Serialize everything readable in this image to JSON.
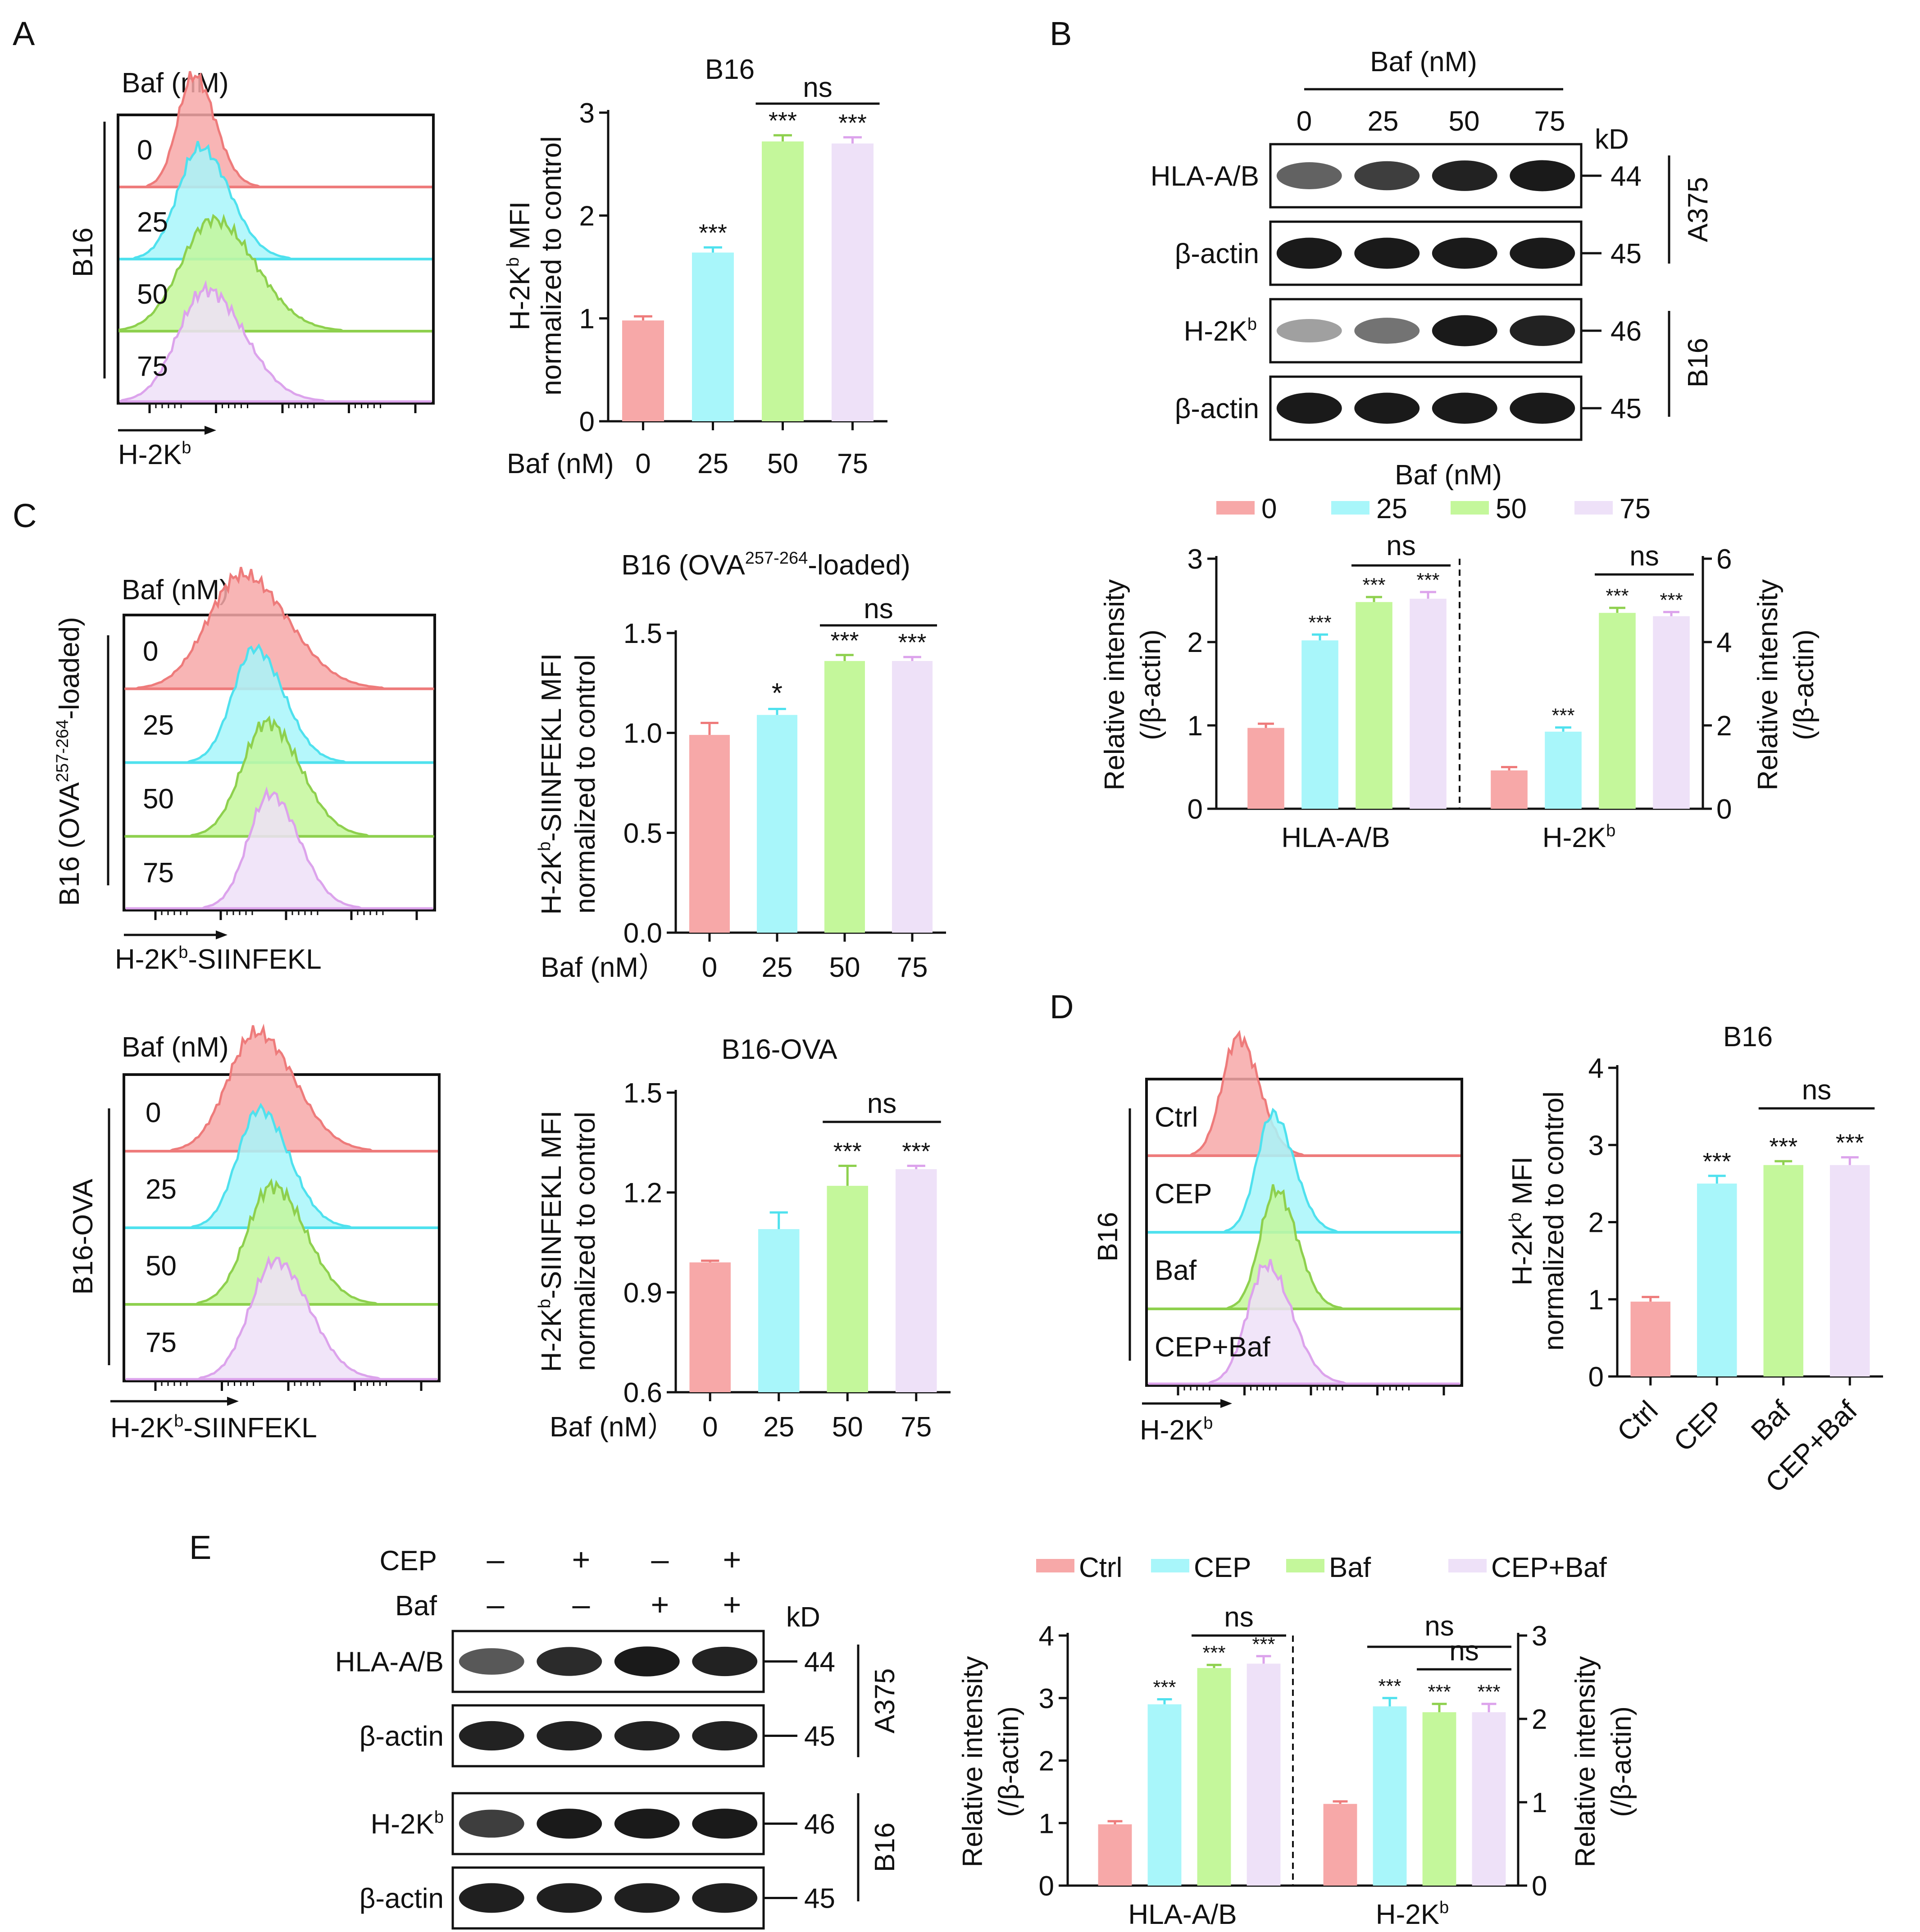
{
  "colors": {
    "c0": "#F7A8A8",
    "c1": "#A8F6FA",
    "c2": "#C4F79B",
    "c3": "#EEE1F8",
    "l0": "#EE7B7B",
    "l1": "#4FE1EE",
    "l2": "#8ED04E",
    "l3": "#DCA3EC",
    "axis": "#111111"
  },
  "panel_labels": {
    "A": "A",
    "B": "B",
    "C": "C",
    "D": "D",
    "E": "E"
  },
  "common": {
    "baf_nM": "Baf (nM)",
    "baf_nM_paren": "Baf (nM）",
    "kD": "kD",
    "ns": "ns",
    "triple": "***",
    "single": "*"
  },
  "panelA": {
    "hist": {
      "title": "Baf (nM)",
      "side": "B16",
      "xlabel": "H-2K",
      "xsup": "b",
      "rows": [
        "0",
        "25",
        "50",
        "75"
      ]
    },
    "chart": {
      "type": "bar",
      "title": "B16",
      "ylabel1_a": "H-2K",
      "ylabel1_sup": "b",
      "ylabel1_b": " MFI",
      "ylabel2": "normalized to control",
      "xprefix": "Baf (nM)",
      "categories": [
        "0",
        "25",
        "50",
        "75"
      ],
      "values": [
        0.98,
        1.64,
        2.72,
        2.7
      ],
      "errors": [
        0.04,
        0.05,
        0.06,
        0.06
      ],
      "ylim": [
        0,
        3
      ],
      "yticks": [
        "0",
        "1",
        "2",
        "3"
      ],
      "sig": [
        "",
        "***",
        "***",
        "***"
      ],
      "bracket": [
        2,
        3
      ]
    }
  },
  "panelB": {
    "blot": {
      "header": "Baf (nM)",
      "lanes": [
        "0",
        "25",
        "50",
        "75"
      ],
      "kd": "kD",
      "rows": [
        {
          "label": "HLA-A/B",
          "kd": "44"
        },
        {
          "label": "β-actin",
          "kd": "45"
        },
        {
          "label": "H-2K",
          "sup": "b",
          "kd": "46"
        },
        {
          "label": "β-actin",
          "kd": "45"
        }
      ],
      "groups": [
        "A375",
        "B16"
      ]
    },
    "chart": {
      "type": "bar",
      "legend_title": "Baf (nM)",
      "legend": [
        "0",
        "25",
        "50",
        "75"
      ],
      "groups": [
        "HLA-A/B",
        "H-2K"
      ],
      "group_sup": "b",
      "ylabel1": "Relative intensity",
      "ylabel2": "(/β-actin)",
      "left": {
        "ylim": [
          0,
          3
        ],
        "yticks": [
          "0",
          "1",
          "2",
          "3"
        ],
        "values": [
          0.97,
          2.02,
          2.48,
          2.52
        ],
        "errors": [
          0.05,
          0.07,
          0.06,
          0.08
        ],
        "sig": [
          "",
          "***",
          "***",
          "***"
        ]
      },
      "right": {
        "ylim": [
          0,
          6
        ],
        "yticks": [
          "0",
          "2",
          "4",
          "6"
        ],
        "values": [
          0.92,
          1.85,
          4.7,
          4.62
        ],
        "errors": [
          0.08,
          0.1,
          0.12,
          0.1
        ],
        "sig": [
          "",
          "***",
          "***",
          "***"
        ]
      }
    }
  },
  "panelC1": {
    "hist": {
      "title": "Baf (nM)",
      "side_a": "B16 (OVA",
      "side_sup": "257-264",
      "side_b": "-loaded)",
      "xlabel_a": "H-2K",
      "xsup": "b",
      "xlabel_b": "-SIINFEKL",
      "rows": [
        "0",
        "25",
        "50",
        "75"
      ]
    },
    "chart": {
      "type": "bar",
      "title_a": "B16 (OVA",
      "title_sup": "257-264",
      "title_b": "-loaded)",
      "ylabel1_a": "H-2K",
      "ylabel1_sup": "b",
      "ylabel1_b": "-SIINFEKL MFI",
      "ylabel2": "normalized to control",
      "categories": [
        "0",
        "25",
        "50",
        "75"
      ],
      "values": [
        0.99,
        1.09,
        1.36,
        1.36
      ],
      "errors": [
        0.06,
        0.03,
        0.03,
        0.02
      ],
      "ylim": [
        0,
        1.5
      ],
      "yticks": [
        "0.0",
        "0.5",
        "1.0",
        "1.5"
      ],
      "sig": [
        "",
        "*",
        "***",
        "***"
      ],
      "bracket": [
        2,
        3
      ]
    }
  },
  "panelC2": {
    "hist": {
      "title": "Baf (nM)",
      "side": "B16-OVA",
      "xlabel_a": "H-2K",
      "xsup": "b",
      "xlabel_b": "-SIINFEKL",
      "rows": [
        "0",
        "25",
        "50",
        "75"
      ]
    },
    "chart": {
      "type": "bar",
      "title": "B16-OVA",
      "ylabel1_a": "H-2K",
      "ylabel1_sup": "b",
      "ylabel1_b": "-SIINFEKL MFI",
      "ylabel2": "normalized to control",
      "categories": [
        "0",
        "25",
        "50",
        "75"
      ],
      "values": [
        0.99,
        1.09,
        1.22,
        1.27
      ],
      "errors": [
        0.005,
        0.05,
        0.06,
        0.01
      ],
      "ylim": [
        0.6,
        1.5
      ],
      "yticks": [
        "0.6",
        "0.9",
        "1.2",
        "1.5"
      ],
      "sig": [
        "",
        "",
        "***",
        "***"
      ],
      "bracket": [
        2,
        3
      ]
    }
  },
  "panelD": {
    "hist": {
      "side": "B16",
      "xlabel": "H-2K",
      "xsup": "b",
      "rows": [
        "Ctrl",
        "CEP",
        "Baf",
        "CEP+Baf"
      ]
    },
    "chart": {
      "type": "bar",
      "title": "B16",
      "ylabel1_a": "H-2K",
      "ylabel1_sup": "b",
      "ylabel1_b": " MFI",
      "ylabel2": "normalized to control",
      "categories": [
        "Ctrl",
        "CEP",
        "Baf",
        "CEP+Baf"
      ],
      "values": [
        0.97,
        2.5,
        2.74,
        2.74
      ],
      "errors": [
        0.06,
        0.1,
        0.05,
        0.1
      ],
      "ylim": [
        0,
        4
      ],
      "yticks": [
        "0",
        "1",
        "2",
        "3",
        "4"
      ],
      "sig": [
        "",
        "***",
        "***",
        "***"
      ],
      "bracket": [
        2,
        3
      ]
    }
  },
  "panelE": {
    "blot": {
      "conds": [
        {
          "label": "CEP",
          "marks": [
            "–",
            "+",
            "–",
            "+"
          ]
        },
        {
          "label": "Baf",
          "marks": [
            "–",
            "–",
            "+",
            "+"
          ]
        }
      ],
      "kd": "kD",
      "rows": [
        {
          "label": "HLA-A/B",
          "kd": "44"
        },
        {
          "label": "β-actin",
          "kd": "45"
        },
        {
          "label": "H-2K",
          "sup": "b",
          "kd": "46"
        },
        {
          "label": "β-actin",
          "kd": "45"
        }
      ],
      "groups": [
        "A375",
        "B16"
      ]
    },
    "chart": {
      "type": "bar",
      "legend": [
        "Ctrl",
        "CEP",
        "Baf",
        "CEP+Baf"
      ],
      "groups": [
        "HLA-A/B",
        "H-2K"
      ],
      "group_sup": "b",
      "ylabel1": "Relative intensity",
      "ylabel2": "(/β-actin)",
      "left": {
        "ylim": [
          0,
          4
        ],
        "yticks": [
          "0",
          "1",
          "2",
          "3",
          "4"
        ],
        "values": [
          0.98,
          2.9,
          3.48,
          3.55
        ],
        "errors": [
          0.05,
          0.08,
          0.05,
          0.12
        ],
        "sig": [
          "",
          "***",
          "***",
          "***"
        ]
      },
      "right": {
        "ylim": [
          0,
          3
        ],
        "yticks": [
          "0",
          "1",
          "2",
          "3"
        ],
        "values": [
          0.98,
          2.15,
          2.08,
          2.08
        ],
        "errors": [
          0.03,
          0.1,
          0.1,
          0.1
        ],
        "sig": [
          "",
          "***",
          "***",
          "***"
        ]
      }
    }
  }
}
